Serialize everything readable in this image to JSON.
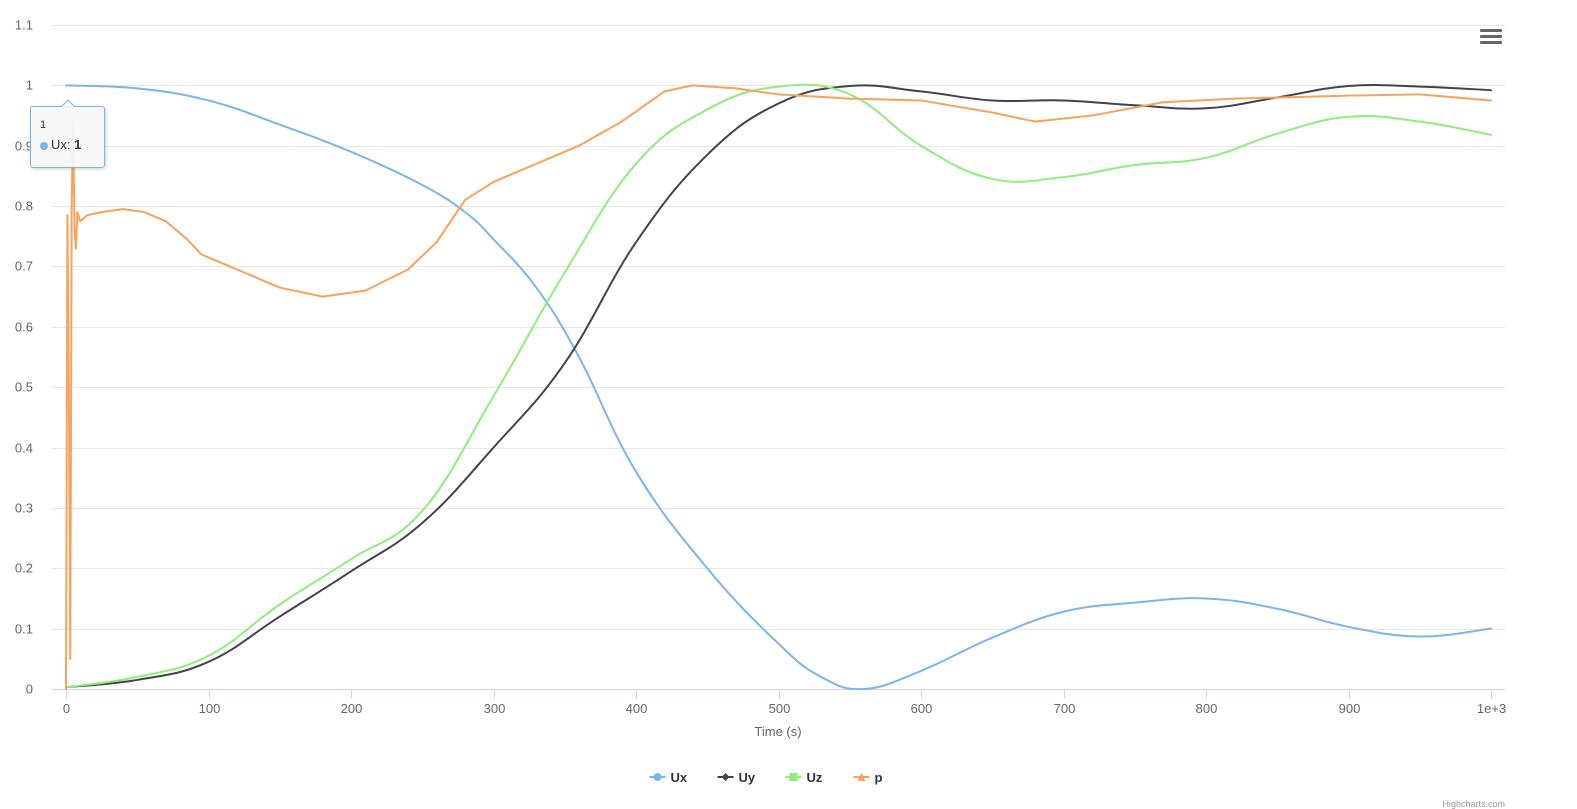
{
  "chart_data": {
    "type": "line",
    "title": "",
    "xlabel": "Time (s)",
    "ylabel": "",
    "xlim": [
      0,
      1000
    ],
    "ylim": [
      0,
      1.1
    ],
    "x_ticks": [
      0,
      100,
      200,
      300,
      400,
      500,
      600,
      700,
      800,
      900,
      1000
    ],
    "x_tick_labels": [
      "0",
      "100",
      "200",
      "300",
      "400",
      "500",
      "600",
      "700",
      "800",
      "900",
      "1e+3"
    ],
    "y_ticks": [
      0,
      0.1,
      0.2,
      0.3,
      0.4,
      0.5,
      0.6,
      0.7,
      0.8,
      0.9,
      1,
      1.1
    ],
    "y_tick_labels": [
      "0",
      "0.1",
      "0.2",
      "0.3",
      "0.4",
      "0.5",
      "0.6",
      "0.7",
      "0.8",
      "0.9",
      "1",
      "1.1"
    ],
    "grid": true,
    "legend_position": "bottom-center",
    "series": [
      {
        "name": "Ux",
        "color": "#7cb5ec",
        "marker": "circle",
        "points": [
          [
            0,
            1
          ],
          [
            50,
            0.995
          ],
          [
            100,
            0.975
          ],
          [
            150,
            0.935
          ],
          [
            200,
            0.89
          ],
          [
            250,
            0.835
          ],
          [
            280,
            0.79
          ],
          [
            300,
            0.745
          ],
          [
            330,
            0.665
          ],
          [
            360,
            0.55
          ],
          [
            400,
            0.36
          ],
          [
            450,
            0.2
          ],
          [
            500,
            0.075
          ],
          [
            530,
            0.02
          ],
          [
            560,
            0
          ],
          [
            600,
            0.03
          ],
          [
            650,
            0.085
          ],
          [
            700,
            0.128
          ],
          [
            750,
            0.143
          ],
          [
            800,
            0.15
          ],
          [
            850,
            0.133
          ],
          [
            900,
            0.103
          ],
          [
            950,
            0.087
          ],
          [
            1000,
            0.1
          ]
        ]
      },
      {
        "name": "Uy",
        "color": "#434348",
        "marker": "diamond",
        "points": [
          [
            0,
            0.003
          ],
          [
            50,
            0.015
          ],
          [
            100,
            0.045
          ],
          [
            150,
            0.12
          ],
          [
            200,
            0.195
          ],
          [
            250,
            0.275
          ],
          [
            300,
            0.4
          ],
          [
            350,
            0.54
          ],
          [
            400,
            0.74
          ],
          [
            450,
            0.885
          ],
          [
            500,
            0.97
          ],
          [
            550,
            0.999
          ],
          [
            600,
            0.99
          ],
          [
            650,
            0.975
          ],
          [
            700,
            0.975
          ],
          [
            750,
            0.967
          ],
          [
            800,
            0.962
          ],
          [
            850,
            0.98
          ],
          [
            900,
            0.999
          ],
          [
            950,
            0.998
          ],
          [
            1000,
            0.992
          ]
        ]
      },
      {
        "name": "Uz",
        "color": "#90ed7d",
        "marker": "square",
        "points": [
          [
            0,
            0.003
          ],
          [
            50,
            0.02
          ],
          [
            100,
            0.055
          ],
          [
            150,
            0.14
          ],
          [
            200,
            0.215
          ],
          [
            250,
            0.295
          ],
          [
            300,
            0.485
          ],
          [
            350,
            0.69
          ],
          [
            400,
            0.87
          ],
          [
            450,
            0.96
          ],
          [
            500,
            0.998
          ],
          [
            550,
            0.985
          ],
          [
            600,
            0.9
          ],
          [
            650,
            0.845
          ],
          [
            700,
            0.848
          ],
          [
            750,
            0.868
          ],
          [
            800,
            0.88
          ],
          [
            850,
            0.92
          ],
          [
            900,
            0.948
          ],
          [
            950,
            0.94
          ],
          [
            1000,
            0.918
          ]
        ]
      },
      {
        "name": "p",
        "color": "#f7a35c",
        "marker": "triangle",
        "points": [
          [
            0,
            0
          ],
          [
            1,
            0.785
          ],
          [
            2,
            0.5
          ],
          [
            3,
            0.05
          ],
          [
            4,
            0.8
          ],
          [
            5,
            0.94
          ],
          [
            6,
            0.76
          ],
          [
            7,
            0.73
          ],
          [
            8,
            0.79
          ],
          [
            10,
            0.775
          ],
          [
            15,
            0.785
          ],
          [
            25,
            0.79
          ],
          [
            40,
            0.795
          ],
          [
            55,
            0.79
          ],
          [
            70,
            0.775
          ],
          [
            85,
            0.745
          ],
          [
            95,
            0.72
          ],
          [
            100,
            0.715
          ],
          [
            110,
            0.705
          ],
          [
            120,
            0.695
          ],
          [
            150,
            0.665
          ],
          [
            180,
            0.65
          ],
          [
            210,
            0.66
          ],
          [
            240,
            0.695
          ],
          [
            260,
            0.74
          ],
          [
            280,
            0.81
          ],
          [
            300,
            0.84
          ],
          [
            330,
            0.87
          ],
          [
            360,
            0.9
          ],
          [
            390,
            0.94
          ],
          [
            420,
            0.99
          ],
          [
            440,
            1.0
          ],
          [
            470,
            0.995
          ],
          [
            500,
            0.985
          ],
          [
            550,
            0.978
          ],
          [
            600,
            0.975
          ],
          [
            650,
            0.955
          ],
          [
            680,
            0.94
          ],
          [
            720,
            0.95
          ],
          [
            770,
            0.972
          ],
          [
            820,
            0.978
          ],
          [
            900,
            0.983
          ],
          [
            950,
            0.985
          ],
          [
            1000,
            0.975
          ]
        ]
      }
    ]
  },
  "legend": {
    "items": [
      {
        "label": "Ux",
        "color": "#7cb5ec",
        "marker": "circle"
      },
      {
        "label": "Uy",
        "color": "#434348",
        "marker": "diamond"
      },
      {
        "label": "Uz",
        "color": "#90ed7d",
        "marker": "square"
      },
      {
        "label": "p",
        "color": "#f7a35c",
        "marker": "triangle"
      }
    ]
  },
  "tooltip": {
    "header": "1",
    "series_name": "Ux",
    "separator": ":",
    "value": "1",
    "color": "#7cb5ec"
  },
  "menu": {
    "icon": "hamburger-menu-icon"
  },
  "credits": {
    "text": "Highcharts.com"
  }
}
